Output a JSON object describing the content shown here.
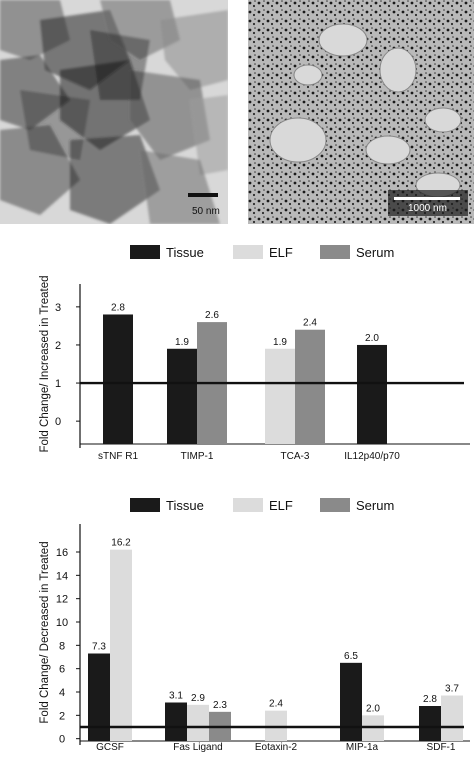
{
  "micrographs": [
    {
      "scale_bar_label": "50 nm"
    },
    {
      "scale_bar_label": "1000 nm"
    }
  ],
  "chart_data": [
    {
      "type": "bar",
      "legend": [
        "Tissue",
        "ELF",
        "Serum"
      ],
      "legend_position": "top",
      "colors": {
        "Tissue": "#1a1a1a",
        "ELF": "#dcdcdc",
        "Serum": "#8a8a8a"
      },
      "categories": [
        "sTNF R1",
        "TIMP-1",
        "TCA-3",
        "IL12p40/p70"
      ],
      "series": [
        {
          "name": "Tissue",
          "values": [
            2.8,
            1.9,
            null,
            2.0
          ]
        },
        {
          "name": "ELF",
          "values": [
            null,
            null,
            1.9,
            null
          ]
        },
        {
          "name": "Serum",
          "values": [
            null,
            2.6,
            2.4,
            null
          ]
        }
      ],
      "data_labels": [
        {
          "category": "sTNF R1",
          "series": "Tissue",
          "text": "2.8"
        },
        {
          "category": "TIMP-1",
          "series": "Tissue",
          "text": "1.9"
        },
        {
          "category": "TIMP-1",
          "series": "Serum",
          "text": "2.6"
        },
        {
          "category": "TCA-3",
          "series": "ELF",
          "text": "1.9"
        },
        {
          "category": "TCA-3",
          "series": "Serum",
          "text": "2.4"
        },
        {
          "category": "IL12p40/p70",
          "series": "Tissue",
          "text": "2.0"
        }
      ],
      "ylabel": "Fold Change/ Increased in Treated",
      "yticks": [
        "0",
        "1",
        "2",
        "3"
      ],
      "ylim": [
        -0.6,
        3.6
      ],
      "reference_line": 1,
      "grid": false
    },
    {
      "type": "bar",
      "legend": [
        "Tissue",
        "ELF",
        "Serum"
      ],
      "legend_position": "top",
      "colors": {
        "Tissue": "#1a1a1a",
        "ELF": "#dcdcdc",
        "Serum": "#8a8a8a"
      },
      "categories": [
        "GCSF",
        "Fas Ligand",
        "Eotaxin-2",
        "MIP-1a",
        "SDF-1"
      ],
      "series": [
        {
          "name": "Tissue",
          "values": [
            7.3,
            3.1,
            null,
            6.5,
            2.8
          ]
        },
        {
          "name": "ELF",
          "values": [
            16.2,
            2.9,
            2.4,
            2.0,
            3.7
          ]
        },
        {
          "name": "Serum",
          "values": [
            null,
            2.3,
            null,
            null,
            null
          ]
        }
      ],
      "data_labels": [
        {
          "category": "GCSF",
          "series": "Tissue",
          "text": "7.3"
        },
        {
          "category": "GCSF",
          "series": "ELF",
          "text": "16.2"
        },
        {
          "category": "Fas Ligand",
          "series": "Tissue",
          "text": "3.1"
        },
        {
          "category": "Fas Ligand",
          "series": "ELF",
          "text": "2.9"
        },
        {
          "category": "Fas Ligand",
          "series": "Serum",
          "text": "2.3"
        },
        {
          "category": "Eotaxin-2",
          "series": "ELF",
          "text": "2.4"
        },
        {
          "category": "MIP-1a",
          "series": "Tissue",
          "text": "6.5"
        },
        {
          "category": "MIP-1a",
          "series": "ELF",
          "text": "2.0"
        },
        {
          "category": "SDF-1",
          "series": "Tissue",
          "text": "2.8"
        },
        {
          "category": "SDF-1",
          "series": "ELF",
          "text": "3.7"
        }
      ],
      "ylabel": "Fold Change/ Decreased in Treated",
      "yticks": [
        "0",
        "2",
        "4",
        "6",
        "8",
        "10",
        "12",
        "14",
        "16"
      ],
      "ylim": [
        -0.2,
        18.4
      ],
      "reference_line": 1,
      "grid": false
    }
  ]
}
